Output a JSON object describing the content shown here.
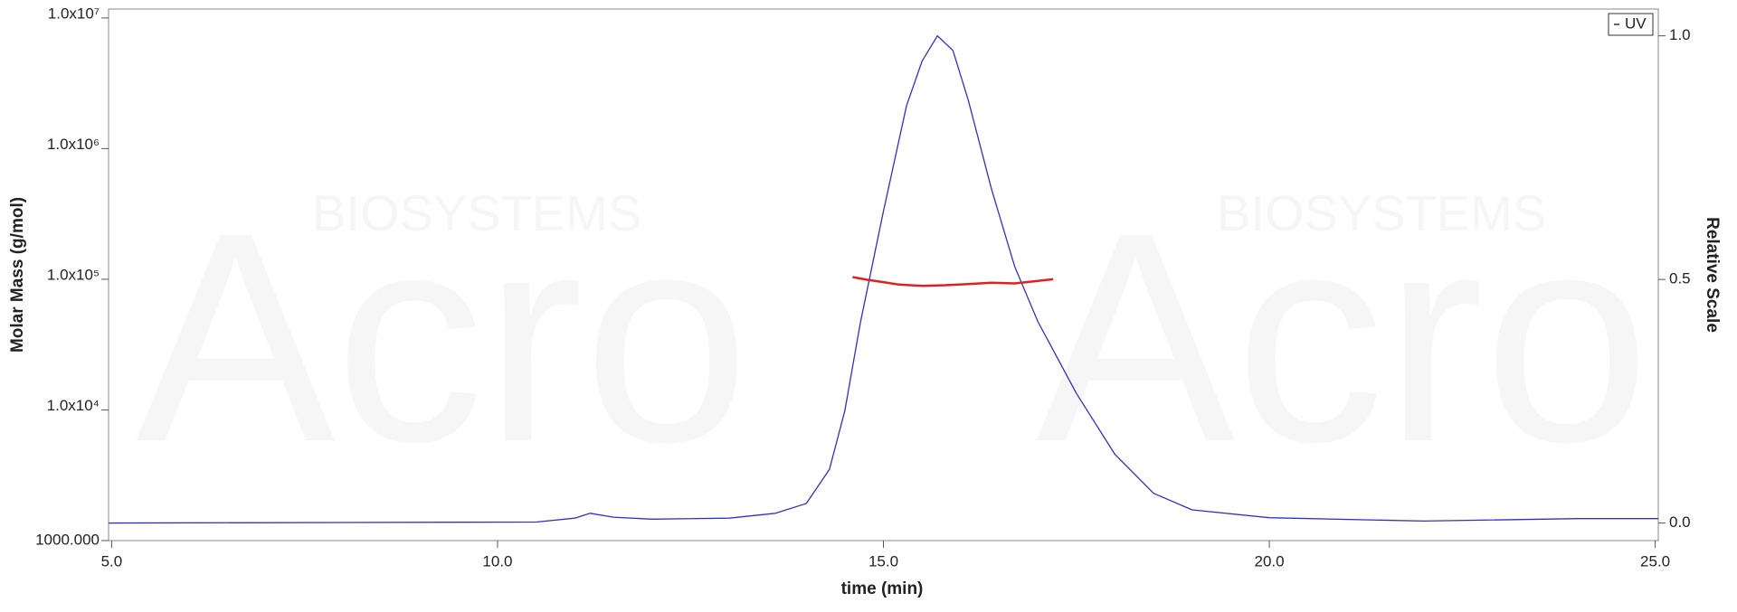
{
  "chart_data": {
    "type": "line",
    "watermark": [
      "Acro",
      "BIOSYSTEMS"
    ],
    "xlabel": "time (min)",
    "ylabel": "Molar Mass (g/mol)",
    "y2label": "Relative Scale",
    "xlim": [
      4.96,
      25.04
    ],
    "xticks": [
      {
        "value": 5,
        "label": "5.0"
      },
      {
        "value": 10,
        "label": "10.0"
      },
      {
        "value": 15,
        "label": "15.0"
      },
      {
        "value": 20,
        "label": "20.0"
      },
      {
        "value": 25,
        "label": "25.0"
      }
    ],
    "ylim": [
      1000,
      11700000
    ],
    "ylog": true,
    "yticks": [
      {
        "value": 1000,
        "label": "1000.000"
      },
      {
        "value": 10000,
        "label": "1.0x10⁴"
      },
      {
        "value": 100000,
        "label": "1.0x10⁵"
      },
      {
        "value": 1000000,
        "label": "1.0x10⁶"
      },
      {
        "value": 10000000,
        "label": "1.0x10⁷"
      }
    ],
    "y2lim": [
      -0.036,
      1.055
    ],
    "y2ticks": [
      {
        "value": 0,
        "label": "0.0"
      },
      {
        "value": 0.5,
        "label": "0.5"
      },
      {
        "value": 1,
        "label": "1.0"
      }
    ],
    "legend": "top-right",
    "series": [
      {
        "name": "UV",
        "color": "#3030c8",
        "axis": "y2",
        "x": [
          4.96,
          10.5,
          11.0,
          11.2,
          11.5,
          12.0,
          13.0,
          13.6,
          14.0,
          14.3,
          14.5,
          14.7,
          15.0,
          15.3,
          15.5,
          15.7,
          15.9,
          16.1,
          16.4,
          16.7,
          17.0,
          17.5,
          18.0,
          18.5,
          19.0,
          20.0,
          22.0,
          24.0,
          25.04
        ],
        "values": [
          0.0,
          0.002,
          0.01,
          0.02,
          0.012,
          0.008,
          0.01,
          0.02,
          0.04,
          0.11,
          0.23,
          0.41,
          0.64,
          0.857,
          0.948,
          1.0,
          0.97,
          0.868,
          0.686,
          0.527,
          0.414,
          0.266,
          0.141,
          0.061,
          0.027,
          0.011,
          0.004,
          0.009,
          0.009
        ]
      },
      {
        "color": "#e02020",
        "axis": "y",
        "x": [
          14.6,
          14.8,
          15.0,
          15.2,
          15.5,
          15.8,
          16.1,
          16.4,
          16.7,
          17.0,
          17.2
        ],
        "values": [
          104000,
          99000,
          95000,
          91000,
          89000,
          90000,
          92000,
          94000,
          93000,
          97000,
          100000
        ]
      }
    ]
  }
}
